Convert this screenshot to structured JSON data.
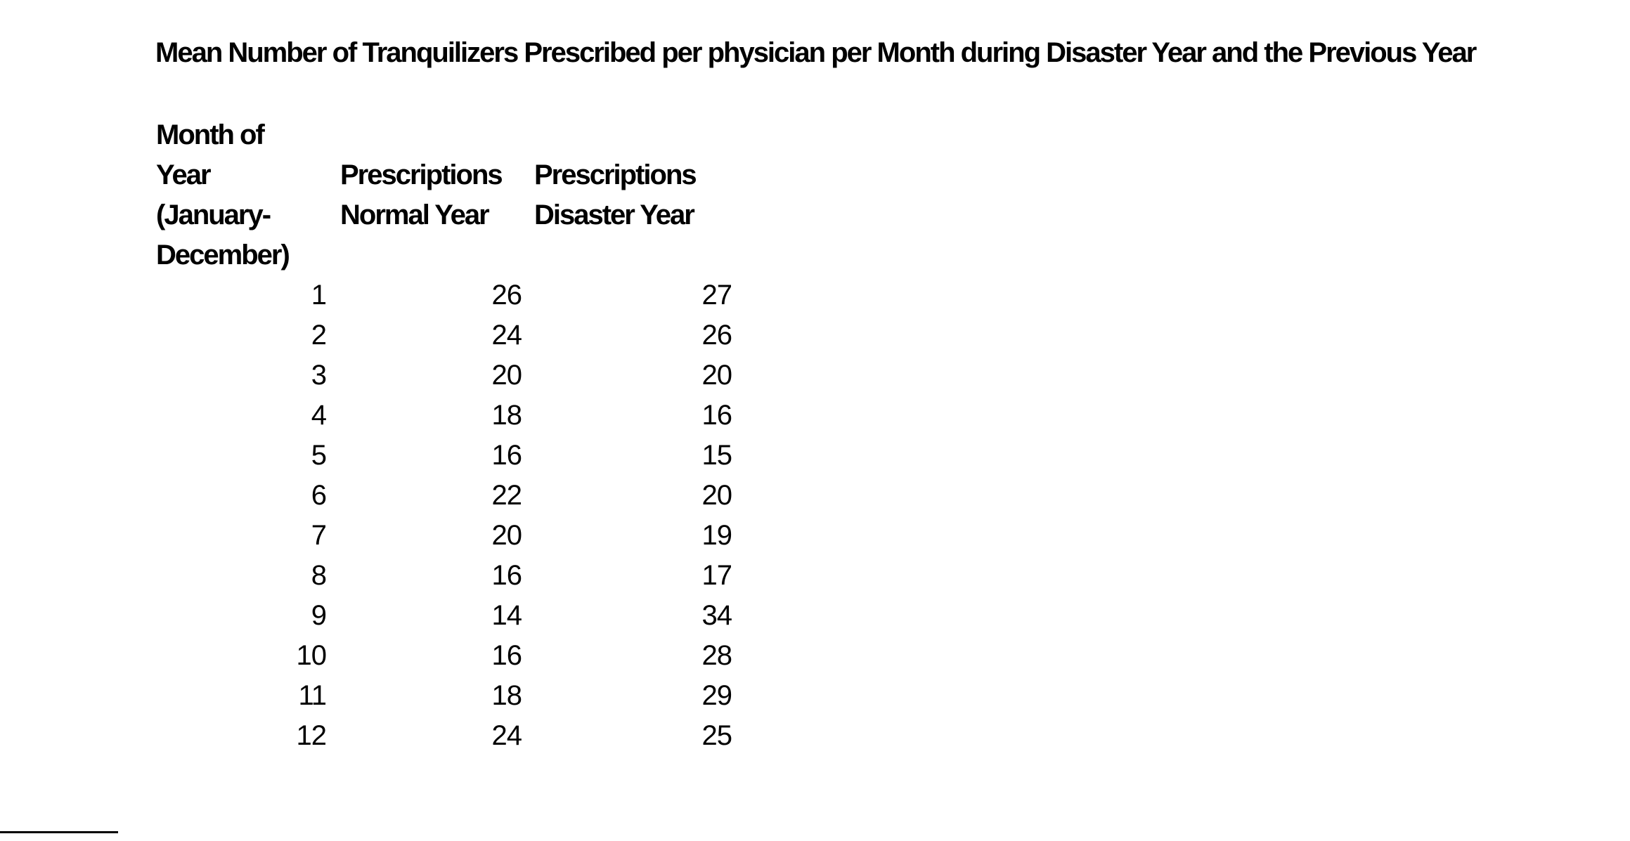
{
  "page": {
    "background_color": "#ffffff",
    "text_color": "#000000"
  },
  "title": "Mean Number of Tranquilizers Prescribed per physician per Month during Disaster Year and the Previous Year",
  "table": {
    "headers": {
      "month_col": [
        "Month of",
        "Year",
        "(January-",
        "December)"
      ],
      "normal_col": [
        "Prescriptions",
        "Normal Year"
      ],
      "disaster_col": [
        "Prescriptions",
        "Disaster Year"
      ]
    },
    "rows": [
      {
        "month": "1",
        "normal": "26",
        "disaster": "27"
      },
      {
        "month": "2",
        "normal": "24",
        "disaster": "26"
      },
      {
        "month": "3",
        "normal": "20",
        "disaster": "20"
      },
      {
        "month": "4",
        "normal": "18",
        "disaster": "16"
      },
      {
        "month": "5",
        "normal": "16",
        "disaster": "15"
      },
      {
        "month": "6",
        "normal": "22",
        "disaster": "20"
      },
      {
        "month": "7",
        "normal": "20",
        "disaster": "19"
      },
      {
        "month": "8",
        "normal": "16",
        "disaster": "17"
      },
      {
        "month": "9",
        "normal": "14",
        "disaster": "34"
      },
      {
        "month": "10",
        "normal": "16",
        "disaster": "28"
      },
      {
        "month": "11",
        "normal": "18",
        "disaster": "29"
      },
      {
        "month": "12",
        "normal": "24",
        "disaster": "25"
      }
    ]
  },
  "chart_data": {
    "type": "table",
    "title": "Mean Number of Tranquilizers Prescribed per physician per Month during Disaster Year and the Previous Year",
    "columns": [
      "Month of Year (January-December)",
      "Prescriptions Normal Year",
      "Prescriptions Disaster Year"
    ],
    "categories": [
      1,
      2,
      3,
      4,
      5,
      6,
      7,
      8,
      9,
      10,
      11,
      12
    ],
    "series": [
      {
        "name": "Prescriptions Normal Year",
        "values": [
          26,
          24,
          20,
          18,
          16,
          22,
          20,
          16,
          14,
          16,
          18,
          24
        ]
      },
      {
        "name": "Prescriptions Disaster Year",
        "values": [
          27,
          26,
          20,
          16,
          15,
          20,
          19,
          17,
          34,
          28,
          29,
          25
        ]
      }
    ]
  }
}
